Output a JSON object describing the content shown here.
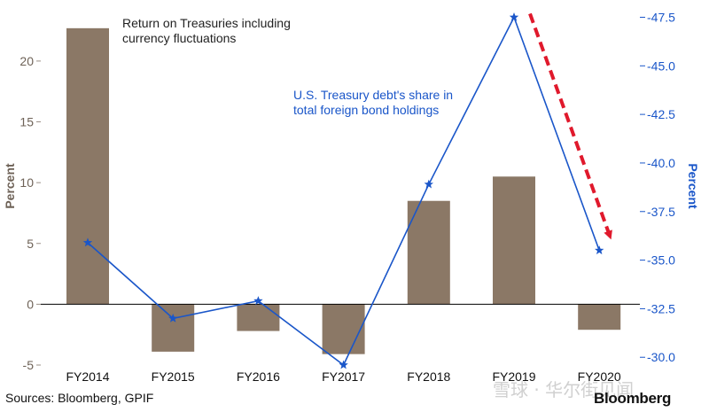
{
  "chart_data": {
    "type": "bar+line",
    "categories": [
      "FY2014",
      "FY2015",
      "FY2016",
      "FY2017",
      "FY2018",
      "FY2019",
      "FY2020"
    ],
    "series": [
      {
        "name": "Return on Treasuries including currency fluctuations",
        "type": "bar",
        "axis": "left",
        "values": [
          22.7,
          -3.9,
          -2.2,
          -4.1,
          8.5,
          10.5,
          -2.1
        ]
      },
      {
        "name": "U.S. Treasury debt's share in total foreign bond holdings",
        "type": "line",
        "axis": "right",
        "values": [
          35.9,
          32.0,
          32.9,
          29.6,
          38.9,
          47.5,
          35.5
        ]
      }
    ],
    "left_axis": {
      "label": "Percent",
      "ylim": [
        -5,
        24
      ],
      "ticks": [
        -5,
        0,
        5,
        10,
        15,
        20
      ],
      "tick_labels": [
        "-5",
        "0",
        "5",
        "10",
        "15",
        "20"
      ]
    },
    "right_axis": {
      "label": "Percent",
      "ylim": [
        29.6,
        47.75
      ],
      "ticks": [
        30,
        32.5,
        35,
        37.5,
        40,
        42.5,
        45,
        47.5
      ],
      "tick_labels": [
        "30.0",
        "32.5",
        "35.0",
        "37.5",
        "40.0",
        "42.5",
        "45.0",
        "47.5"
      ]
    },
    "annotations": {
      "bar_label_line1": "Return on Treasuries including",
      "bar_label_line2": "currency fluctuations",
      "line_label_line1": "U.S. Treasury debt's share in",
      "line_label_line2": "total foreign bond holdings"
    },
    "arrow": {
      "from_category": "FY2019",
      "to_category": "FY2020",
      "meaning": "decline"
    }
  },
  "colors": {
    "bar": "#8b7866",
    "line": "#1a56c9",
    "arrow": "#e0192c",
    "left_axis_text": "#6e6257"
  },
  "footer": {
    "source": "Sources: Bloomberg, GPIF",
    "brand": "Bloomberg",
    "watermark": "雪球 · 华尔街见闻"
  }
}
